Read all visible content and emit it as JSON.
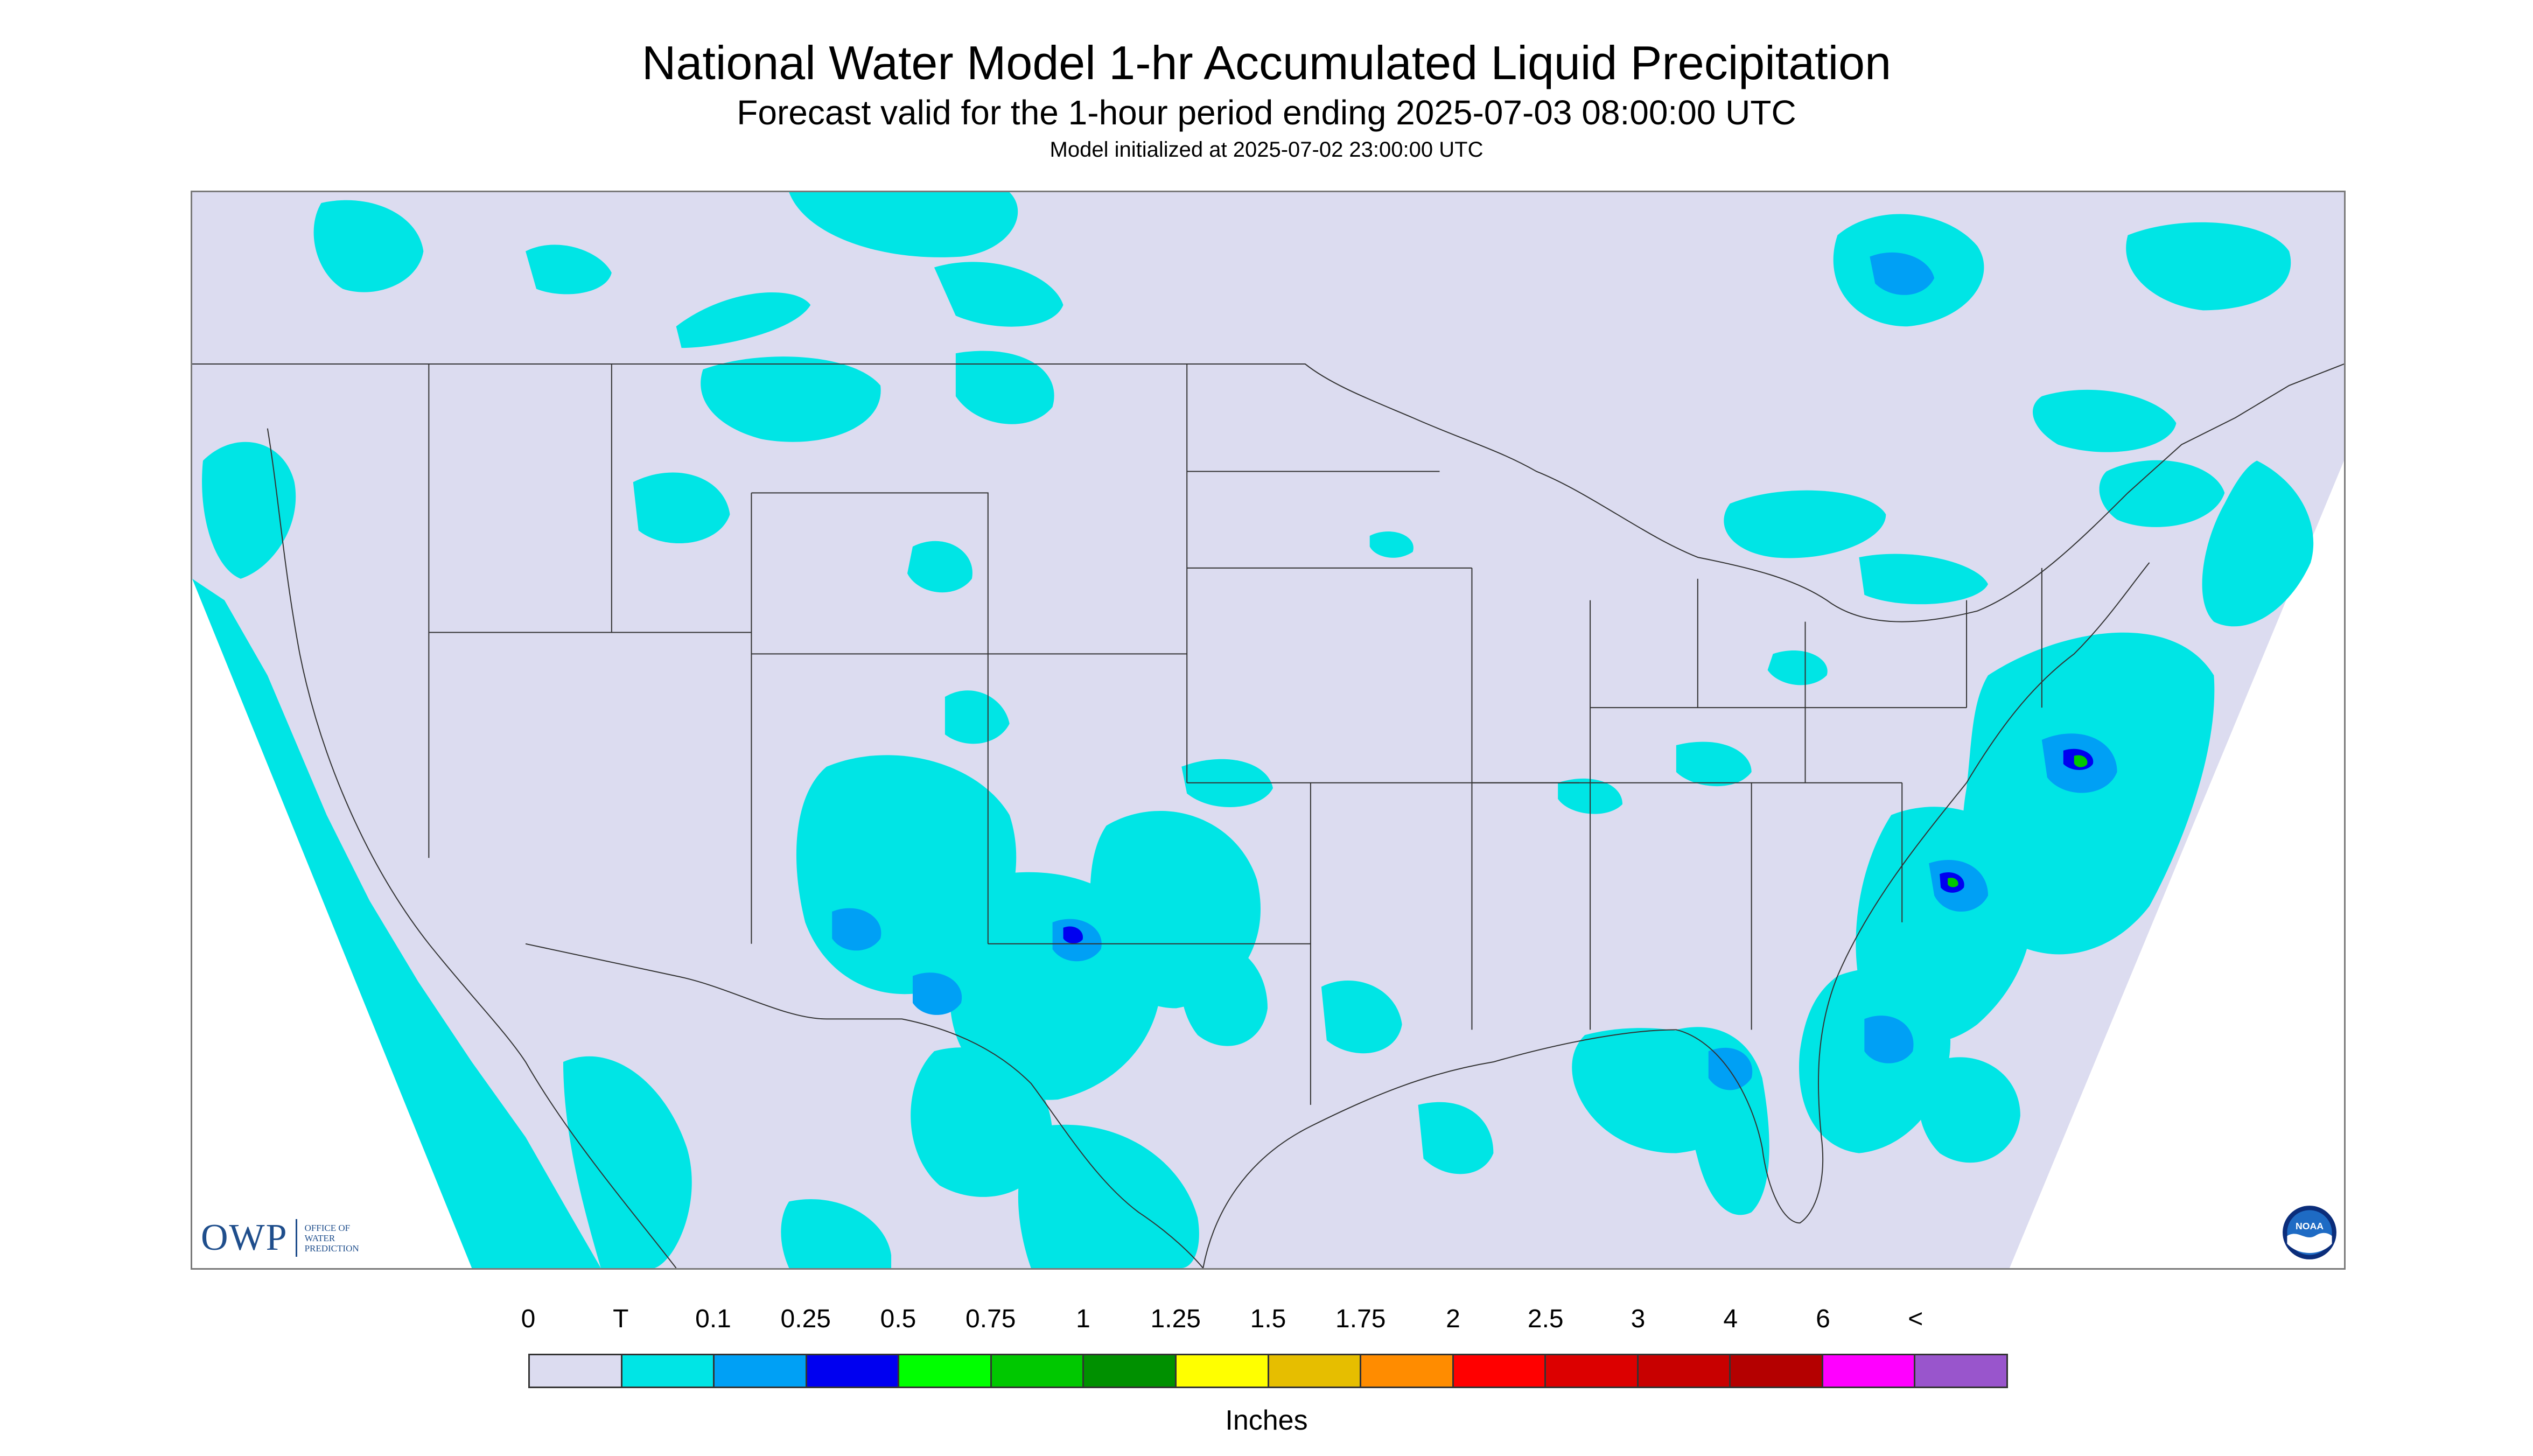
{
  "header": {
    "title": "National Water Model 1-hr Accumulated Liquid Precipitation",
    "subtitle": "Forecast valid for the 1-hour period ending 2025-07-03 08:00:00 UTC",
    "init": "Model initialized at 2025-07-02 23:00:00 UTC"
  },
  "logos": {
    "owp_mark": "OWP",
    "owp_text": [
      "Office of",
      "Water",
      "Prediction"
    ],
    "noaa_text": "NOAA"
  },
  "legend": {
    "units": "Inches",
    "labels": [
      "0",
      "T",
      "0.1",
      "0.25",
      "0.5",
      "0.75",
      "1",
      "1.25",
      "1.5",
      "1.75",
      "2",
      "2.5",
      "3",
      "4",
      "6",
      "<"
    ],
    "colors": [
      "#dcdcf0",
      "#00e5e5",
      "#00a0f5",
      "#0000f0",
      "#00ff00",
      "#00c800",
      "#009000",
      "#ffff00",
      "#e6be00",
      "#ff8c00",
      "#ff0000",
      "#dc0000",
      "#c80000",
      "#b40000",
      "#ff00ff",
      "#9955cc"
    ]
  },
  "map": {
    "domain_fill": "#dcdcf0",
    "trace_color": "#00e5e5",
    "light_color": "#00a0f5",
    "heavy_color": "#0000f0",
    "moderate_color": "#00c800",
    "border_color": "#333333"
  }
}
